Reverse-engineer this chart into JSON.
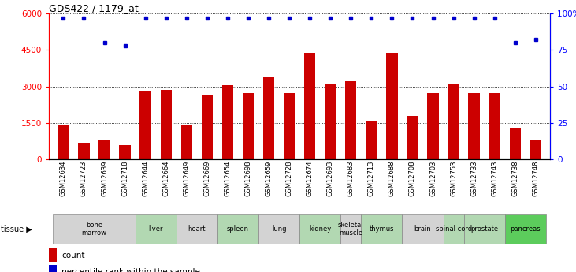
{
  "title": "GDS422 / 1179_at",
  "samples": [
    "GSM12634",
    "GSM12723",
    "GSM12639",
    "GSM12718",
    "GSM12644",
    "GSM12664",
    "GSM12649",
    "GSM12669",
    "GSM12654",
    "GSM12698",
    "GSM12659",
    "GSM12728",
    "GSM12674",
    "GSM12693",
    "GSM12683",
    "GSM12713",
    "GSM12688",
    "GSM12708",
    "GSM12703",
    "GSM12753",
    "GSM12733",
    "GSM12743",
    "GSM12738",
    "GSM12748"
  ],
  "counts": [
    1380,
    680,
    760,
    570,
    2820,
    2870,
    1380,
    2620,
    3050,
    2720,
    3380,
    2720,
    4380,
    3080,
    3220,
    1540,
    4380,
    1780,
    2720,
    3080,
    2720,
    2720,
    1280,
    780
  ],
  "percentile_vals": [
    97,
    97,
    80,
    78,
    97,
    97,
    97,
    97,
    97,
    97,
    97,
    97,
    97,
    97,
    97,
    97,
    97,
    97,
    97,
    97,
    97,
    97,
    80,
    82
  ],
  "bar_color": "#cc0000",
  "dot_color": "#0000cc",
  "ylim_left": [
    0,
    6000
  ],
  "ylim_right": [
    0,
    100
  ],
  "yticks_left": [
    0,
    1500,
    3000,
    4500,
    6000
  ],
  "yticks_right": [
    0,
    25,
    50,
    75,
    100
  ],
  "tissues": [
    {
      "name": "bone\nmarrow",
      "samples": [
        "GSM12634",
        "GSM12723",
        "GSM12639",
        "GSM12718"
      ],
      "color": "#d3d3d3"
    },
    {
      "name": "liver",
      "samples": [
        "GSM12644",
        "GSM12664"
      ],
      "color": "#b2d8b2"
    },
    {
      "name": "heart",
      "samples": [
        "GSM12649",
        "GSM12669"
      ],
      "color": "#d3d3d3"
    },
    {
      "name": "spleen",
      "samples": [
        "GSM12654",
        "GSM12698"
      ],
      "color": "#b2d8b2"
    },
    {
      "name": "lung",
      "samples": [
        "GSM12659",
        "GSM12728"
      ],
      "color": "#d3d3d3"
    },
    {
      "name": "kidney",
      "samples": [
        "GSM12674",
        "GSM12693"
      ],
      "color": "#b2d8b2"
    },
    {
      "name": "skeletal\nmuscle",
      "samples": [
        "GSM12683"
      ],
      "color": "#d3d3d3"
    },
    {
      "name": "thymus",
      "samples": [
        "GSM12713",
        "GSM12688"
      ],
      "color": "#b2d8b2"
    },
    {
      "name": "brain",
      "samples": [
        "GSM12708",
        "GSM12703"
      ],
      "color": "#d3d3d3"
    },
    {
      "name": "spinal cord",
      "samples": [
        "GSM12753"
      ],
      "color": "#b2d8b2"
    },
    {
      "name": "prostate",
      "samples": [
        "GSM12733",
        "GSM12743"
      ],
      "color": "#b2d8b2"
    },
    {
      "name": "pancreas",
      "samples": [
        "GSM12738",
        "GSM12748"
      ],
      "color": "#5ccc5c"
    }
  ],
  "bar_width": 0.55,
  "figsize": [
    7.31,
    3.45
  ],
  "dpi": 100
}
